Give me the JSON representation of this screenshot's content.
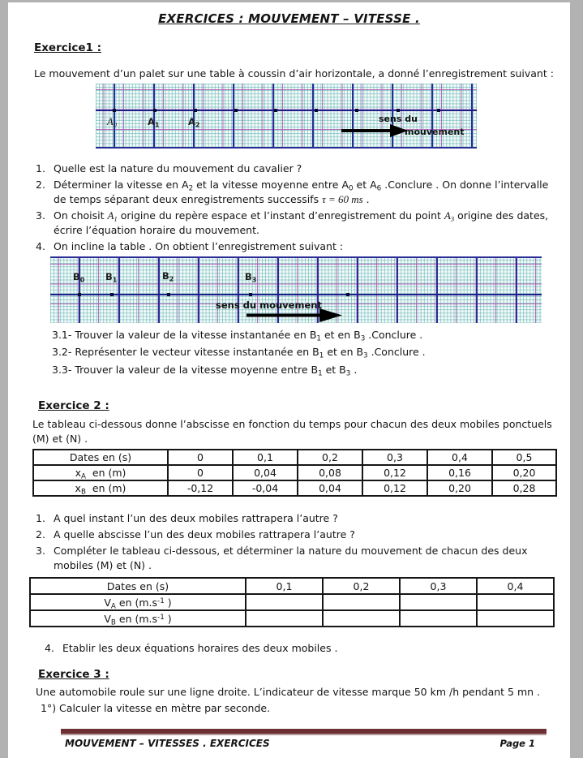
{
  "page": {
    "title": "EXERCICES : MOUVEMENT – VITESSE ."
  },
  "colors": {
    "footer_bar": "#6e2f33",
    "grid_navy": "#2b2b96",
    "grid_magenta": "#b258b2",
    "grid_teal": "#62b2b2",
    "paper": "#ffffff",
    "surround": "#b2b2b2"
  },
  "ex1": {
    "heading": "Exercice1 :",
    "intro": "Le mouvement d’un palet sur une table à coussin d’air horizontale, a donné l’enregistrement suivant :",
    "graph1": {
      "num_dots": 9,
      "points": [
        [
          {
            "t": "A"
          },
          {
            "t": "0",
            "s": "sub"
          }
        ],
        [
          {
            "t": "A"
          },
          {
            "t": "1",
            "s": "sub"
          }
        ],
        [
          {
            "t": "A"
          },
          {
            "t": "2",
            "s": "sub"
          }
        ]
      ],
      "direction_label_1": "sens du",
      "direction_label_2": "mouvement"
    },
    "questions": [
      {
        "num": "1.",
        "text": "Quelle est la nature du mouvement du cavalier ?"
      },
      {
        "num": "2.",
        "rich": [
          {
            "t": "Déterminer la vitesse en A"
          },
          {
            "t": "2",
            "s": "sub"
          },
          {
            "t": " et la vitesse moyenne entre A"
          },
          {
            "t": "0",
            "s": "sub"
          },
          {
            "t": " et A"
          },
          {
            "t": "6",
            "s": "sub"
          },
          {
            "t": " .Conclure . On donne l’intervalle de temps séparant deux enregistrements successifs "
          },
          {
            "t": "τ = 60 ms",
            "s": "math"
          },
          {
            "t": " ."
          }
        ]
      },
      {
        "num": "3.",
        "rich": [
          {
            "t": "On choisit "
          },
          {
            "t": "A",
            "s": "math"
          },
          {
            "t": "1",
            "s": "mathsub"
          },
          {
            "t": " origine du repère espace et l’instant d’enregistrement du point "
          },
          {
            "t": "A",
            "s": "math"
          },
          {
            "t": "3",
            "s": "mathsub"
          },
          {
            "t": " origine des dates, écrire l’équation horaire du mouvement."
          }
        ]
      },
      {
        "num": "4.",
        "text": "On incline la table . On obtient l’enregistrement suivant :"
      }
    ],
    "graph2": {
      "num_dots": 5,
      "points": [
        [
          {
            "t": "B"
          },
          {
            "t": "0",
            "s": "sub"
          }
        ],
        [
          {
            "t": "B"
          },
          {
            "t": "1",
            "s": "sub"
          }
        ],
        [
          {
            "t": "B"
          },
          {
            "t": "2",
            "s": "sub"
          }
        ],
        [
          {
            "t": "B"
          },
          {
            "t": "3",
            "s": "sub"
          }
        ]
      ],
      "direction_label": "sens du mouvement"
    },
    "subquestions": [
      {
        "rich": [
          {
            "t": "3.1- Trouver la valeur de la vitesse instantanée en B"
          },
          {
            "t": "1",
            "s": "sub"
          },
          {
            "t": " et en B"
          },
          {
            "t": "3",
            "s": "sub"
          },
          {
            "t": " .Conclure ."
          }
        ]
      },
      {
        "rich": [
          {
            "t": "3.2- Représenter le vecteur vitesse instantanée en B"
          },
          {
            "t": "1",
            "s": "sub"
          },
          {
            "t": " et en B"
          },
          {
            "t": "3",
            "s": "sub"
          },
          {
            "t": " .Conclure ."
          }
        ]
      },
      {
        "rich": [
          {
            "t": "3.3- Trouver la valeur de la vitesse moyenne entre B"
          },
          {
            "t": "1",
            "s": "sub"
          },
          {
            "t": " et B"
          },
          {
            "t": "3",
            "s": "sub"
          },
          {
            "t": " ."
          }
        ]
      }
    ]
  },
  "ex2": {
    "heading": "Exercice 2 :",
    "intro": "Le tableau ci-dessous donne l’abscisse en fonction du temps pour chacun des deux mobiles ponctuels (M) et (N) .",
    "table1": {
      "header": [
        "Dates en (s)",
        "0",
        "0,1",
        "0,2",
        "0,3",
        "0,4",
        "0,5"
      ],
      "rows": [
        {
          "label": [
            {
              "t": "x"
            },
            {
              "t": "A",
              "s": "sub"
            },
            {
              "t": "  en (m)"
            }
          ],
          "values": [
            "0",
            "0,04",
            "0,08",
            "0,12",
            "0,16",
            "0,20"
          ]
        },
        {
          "label": [
            {
              "t": "x"
            },
            {
              "t": "B",
              "s": "sub"
            },
            {
              "t": "  en (m)"
            }
          ],
          "values": [
            "-0,12",
            "-0,04",
            "0,04",
            "0,12",
            "0,20",
            "0,28"
          ]
        }
      ]
    },
    "questions": [
      {
        "num": "1.",
        "text": "A quel instant l’un des deux mobiles rattrapera l’autre ?"
      },
      {
        "num": "2.",
        "text": "A quelle abscisse l’un des deux mobiles rattrapera l’autre ?"
      },
      {
        "num": "3.",
        "text": "Compléter le tableau ci-dessous, et déterminer la nature du mouvement de chacun des deux mobiles (M) et (N) ."
      }
    ],
    "table2": {
      "header": [
        "Dates en (s)",
        "0,1",
        "0,2",
        "0,3",
        "0,4"
      ],
      "rows": [
        {
          "label": [
            {
              "t": "V"
            },
            {
              "t": "A",
              "s": "sub"
            },
            {
              "t": " en (m.s"
            },
            {
              "t": "-1",
              "s": "sup"
            },
            {
              "t": " )"
            }
          ],
          "values": [
            "",
            "",
            "",
            ""
          ]
        },
        {
          "label": [
            {
              "t": "V"
            },
            {
              "t": "B",
              "s": "sub"
            },
            {
              "t": " en (m.s"
            },
            {
              "t": "-1",
              "s": "sup"
            },
            {
              "t": " )"
            }
          ],
          "values": [
            "",
            "",
            "",
            ""
          ]
        }
      ]
    },
    "question4": {
      "num": "4.",
      "text": "Etablir les deux équations horaires des deux mobiles ."
    }
  },
  "ex3": {
    "heading": "Exercice 3 :",
    "line1": "Une automobile roule sur une ligne droite. L’indicateur de vitesse marque 50 km /h pendant  5 mn .",
    "line2": "1°) Calculer la vitesse en mètre par seconde."
  },
  "footer": {
    "left": "MOUVEMENT – VITESSES . EXERCICES",
    "right": "Page 1"
  }
}
